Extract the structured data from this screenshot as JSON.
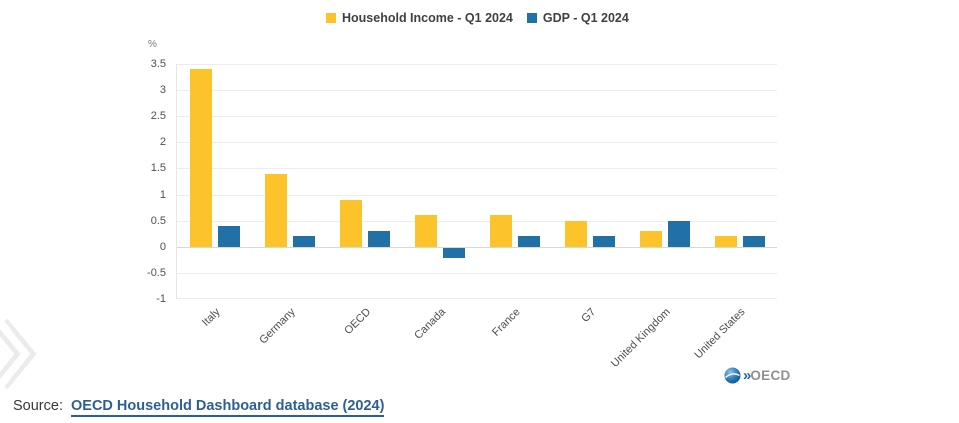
{
  "legend": {
    "items": [
      {
        "id": "household-income",
        "label": "Household Income - Q1 2024",
        "color": "#FCC32B"
      },
      {
        "id": "gdp",
        "label": "GDP - Q1 2024",
        "color": "#2171A6"
      }
    ]
  },
  "chart_data": {
    "type": "bar",
    "title": "",
    "unit_label": "%",
    "categories": [
      "Italy",
      "Germany",
      "OECD",
      "Canada",
      "France",
      "G7",
      "United Kingdom",
      "United States"
    ],
    "series": [
      {
        "id": "household-income",
        "name": "Household Income - Q1 2024",
        "color": "#FCC32B",
        "values": [
          3.4,
          1.4,
          0.9,
          0.6,
          0.6,
          0.5,
          0.3,
          0.2
        ]
      },
      {
        "id": "gdp",
        "name": "GDP - Q1 2024",
        "color": "#2171A6",
        "values": [
          0.4,
          0.2,
          0.3,
          -0.2,
          0.2,
          0.2,
          0.5,
          0.2
        ]
      }
    ],
    "y_ticks": [
      3.5,
      3,
      2.5,
      2,
      1.5,
      1,
      0.5,
      0,
      -0.5,
      -1
    ],
    "ylim": [
      -1,
      3.5
    ],
    "grid": true,
    "legend_position": "top",
    "xlabel": "",
    "ylabel": "%"
  },
  "footer": {
    "source_prefix": "Source:",
    "source_link_text": "OECD Household Dashboard database (2024)"
  },
  "logo": {
    "chevrons": "»",
    "text": "OECD"
  }
}
